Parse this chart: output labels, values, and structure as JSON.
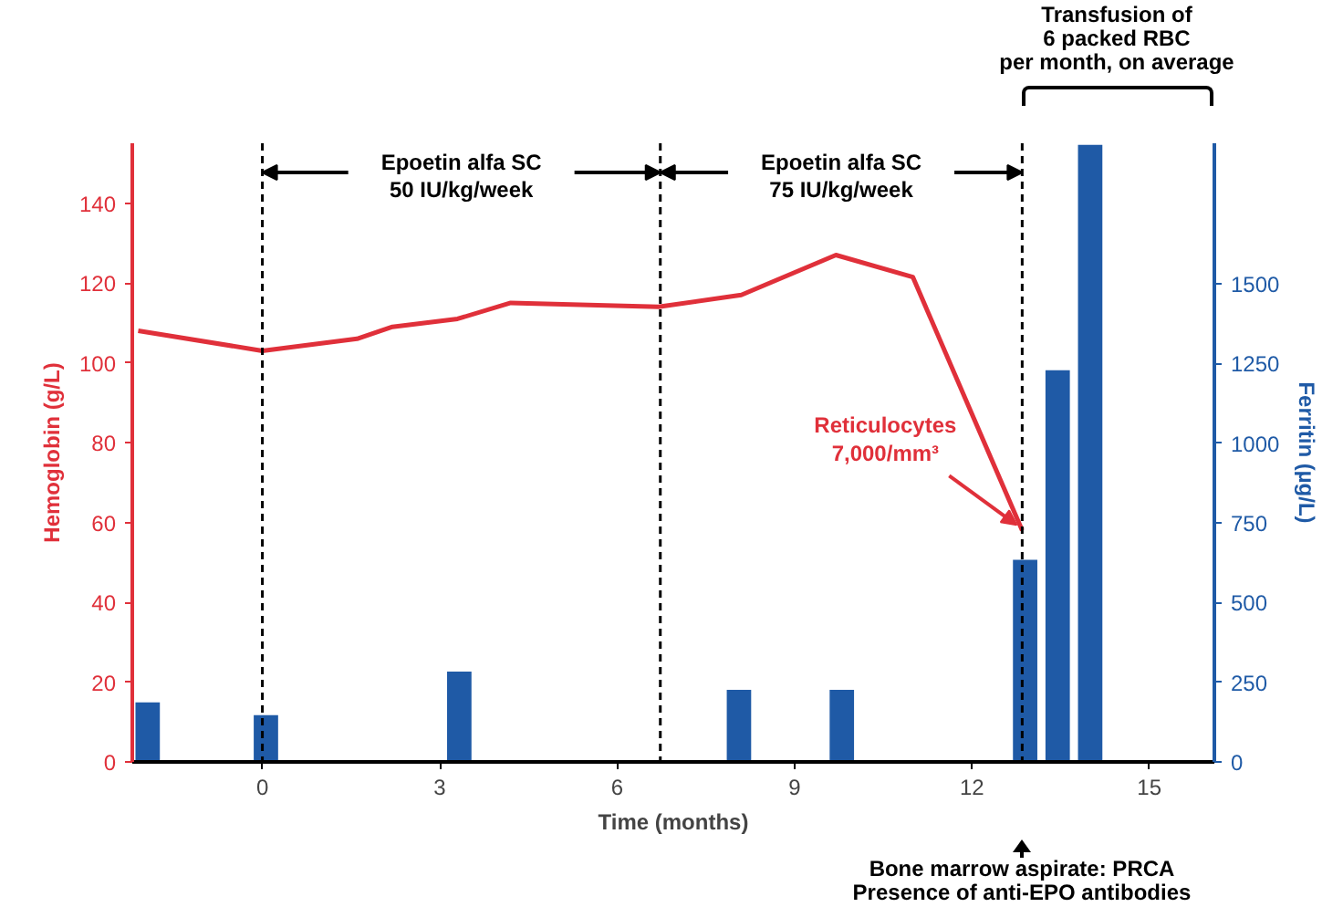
{
  "chart_data": {
    "type": "line",
    "xlabel": "Time (months)",
    "ylabel": "Hemoglobin (g/L)",
    "y2label": "Ferritin (µg/L)",
    "xlim": [
      -2.2,
      16.1
    ],
    "xticks": [
      0,
      3,
      6,
      9,
      12,
      15
    ],
    "ylim": [
      0,
      155
    ],
    "yticks": [
      0,
      20,
      40,
      60,
      80,
      100,
      120,
      140
    ],
    "y2lim": [
      0,
      1940
    ],
    "y2ticks": [
      0,
      250,
      500,
      750,
      1000,
      1250,
      1500
    ],
    "series": [
      {
        "color": "#e0303a",
        "x": [
          -2.1,
          0,
          1.6,
          2.2,
          3.3,
          4.2,
          6.7,
          8.1,
          9.7,
          11.0,
          12.85
        ],
        "values": [
          108,
          103,
          106,
          109,
          111,
          115,
          114,
          117,
          127,
          121.5,
          58
        ]
      },
      {
        "type": "bar",
        "axis": "y2",
        "color": "#1f5aa6",
        "x": [
          -1.94,
          0.06,
          3.33,
          8.06,
          9.8,
          12.9,
          13.45,
          14.0
        ],
        "values": [
          187,
          147,
          283,
          226,
          226,
          634,
          1228,
          1935
        ]
      }
    ],
    "ref_lines": [
      {
        "axis": "x",
        "value": 0,
        "color": "#000000",
        "line_style": "dashed"
      },
      {
        "axis": "x",
        "value": 6.73,
        "color": "#000000",
        "line_style": "dashed"
      },
      {
        "axis": "x",
        "value": 12.85,
        "color": "#000000",
        "line_style": "dashed"
      }
    ],
    "annotations": [
      "Epoetin alfa SC\n50 IU/kg/week",
      "Epoetin alfa SC\n75 IU/kg/week",
      {
        "text": "Reticulocytes\n7,000/mm³",
        "x": 12.85,
        "y": 58
      },
      "Transfusion of\n6 packed RBC\nper month, on average",
      "Bone marrow aspirate: PRCA\nPresence of anti-EPO antibodies"
    ]
  }
}
